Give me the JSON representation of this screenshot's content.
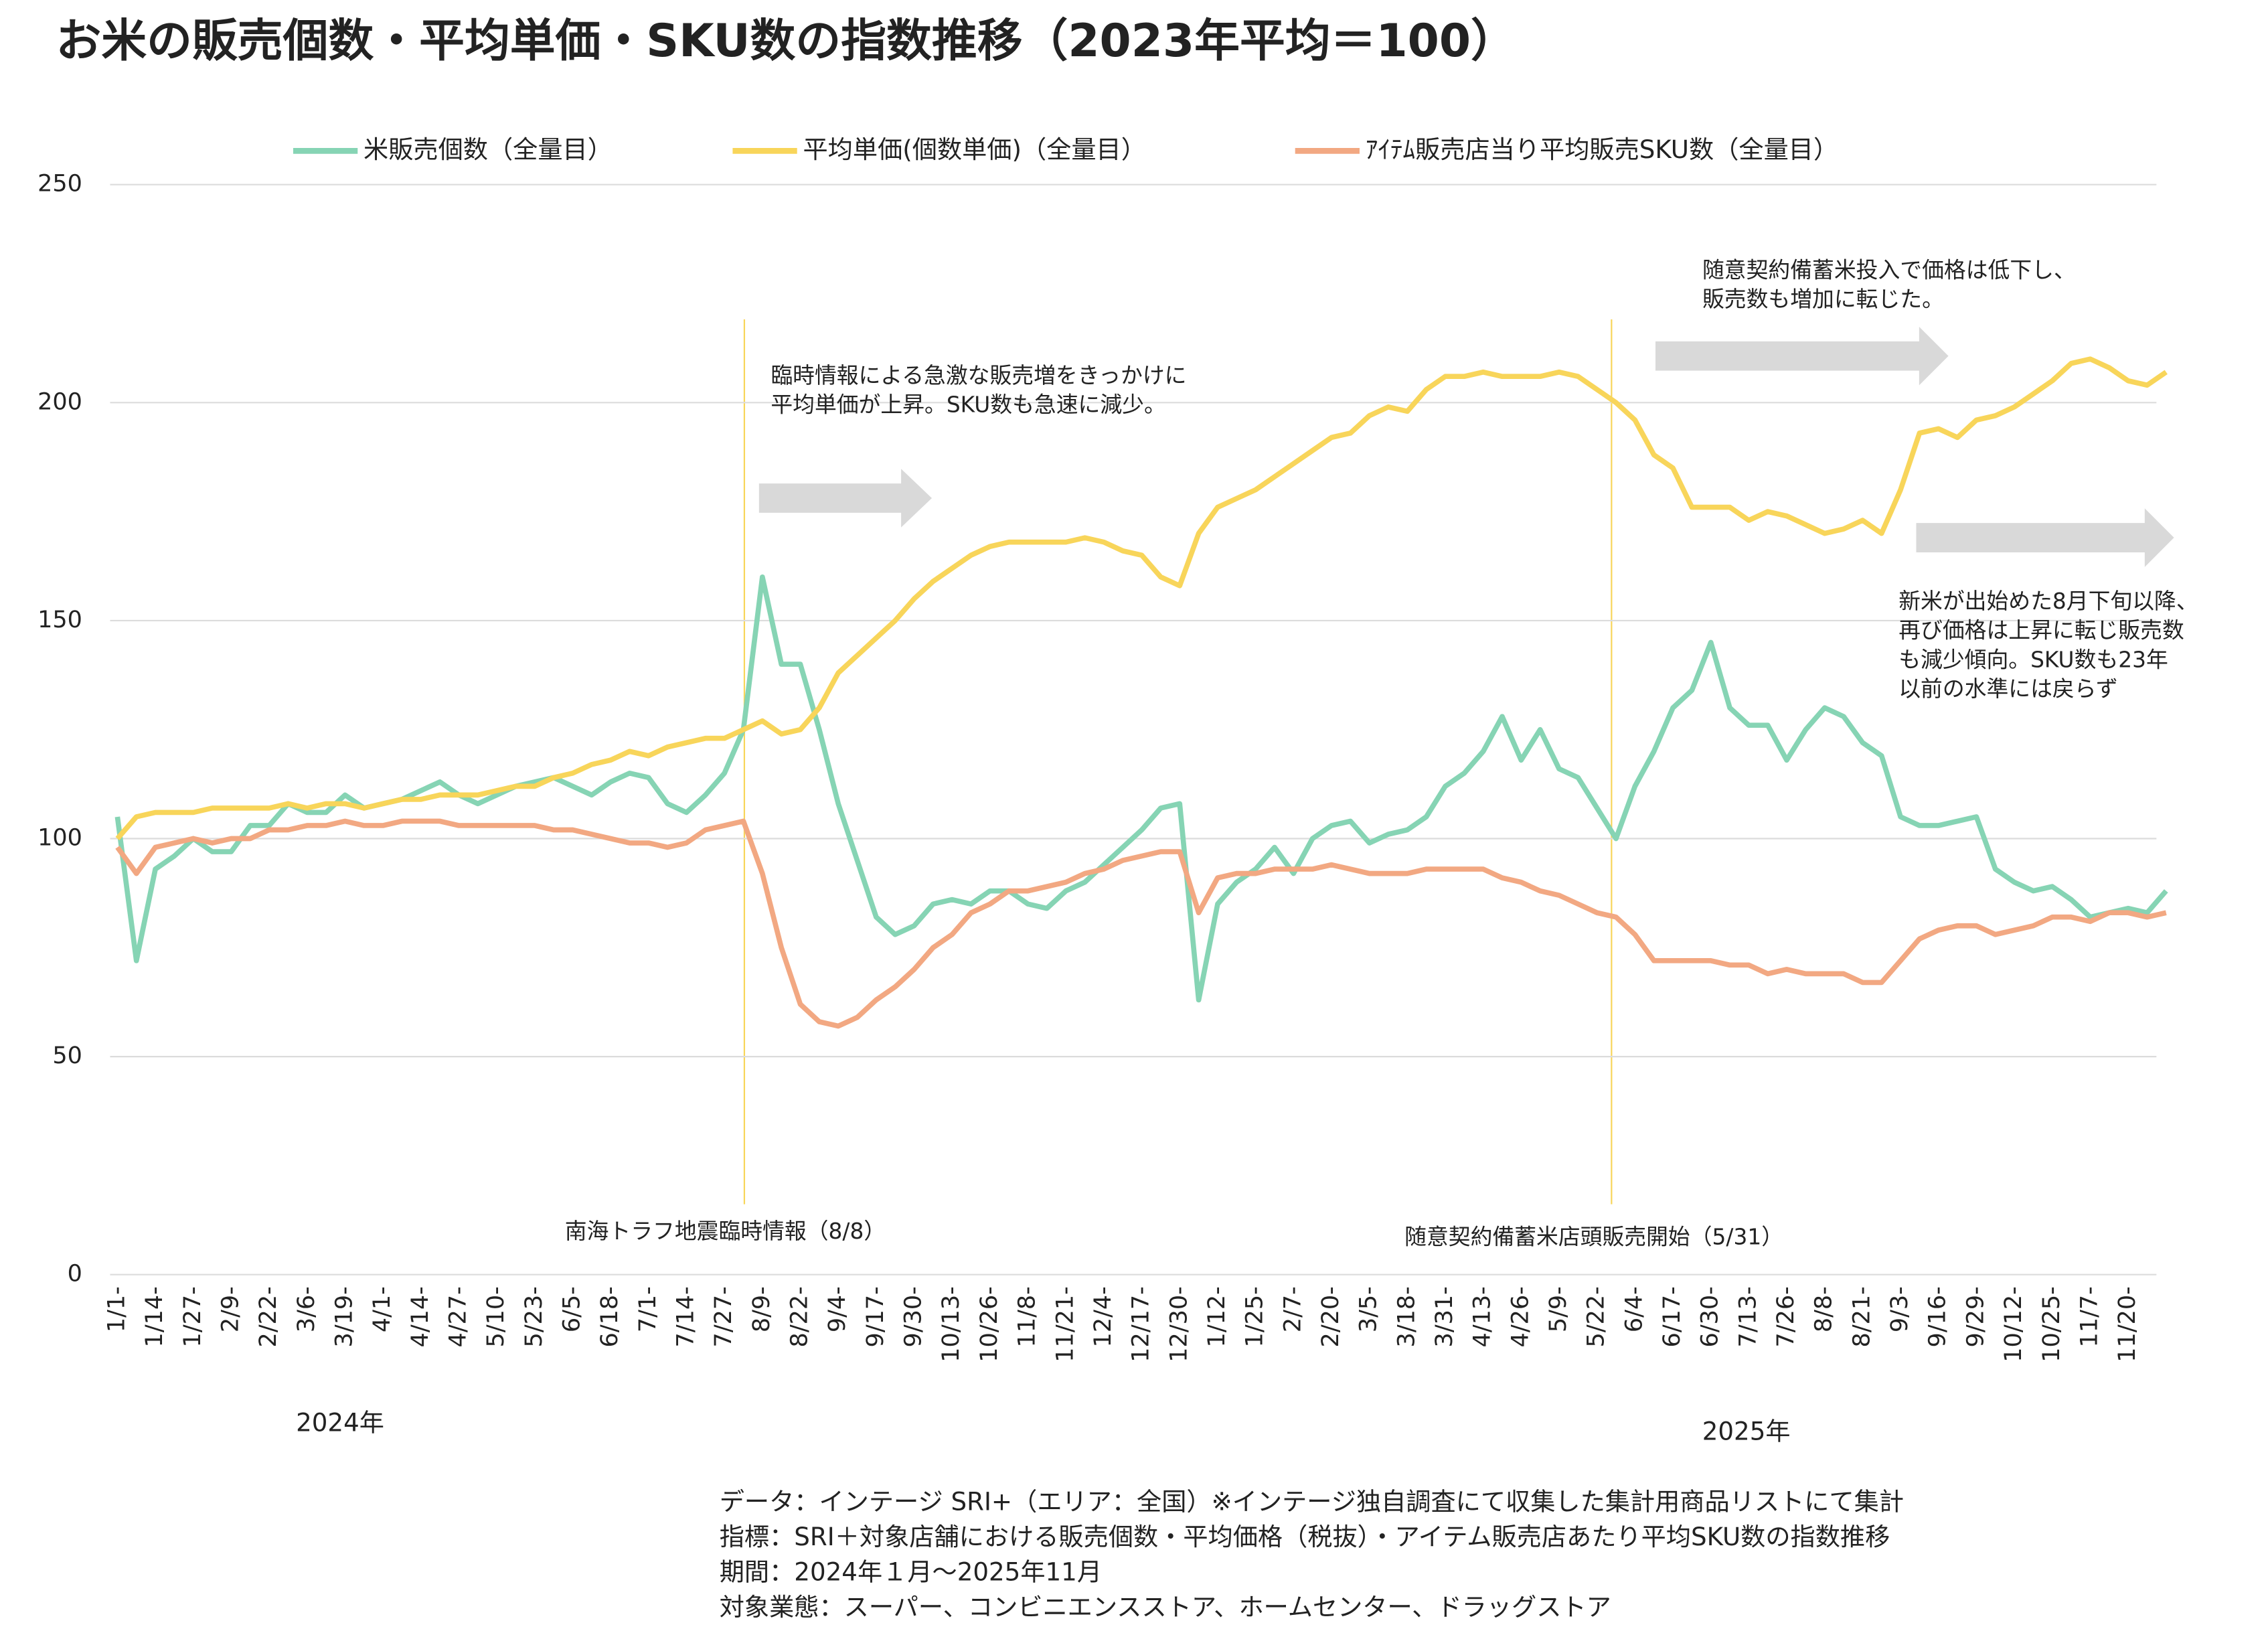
{
  "chart_data": {
    "type": "line",
    "title": "お米の販売個数・平均単価・SKU数の指数推移（2023年平均＝100）",
    "categories": [
      "1/1-",
      null,
      "1/14-",
      null,
      "1/27-",
      null,
      "2/9-",
      null,
      "2/22-",
      null,
      "3/6-",
      null,
      "3/19-",
      null,
      "4/1-",
      null,
      "4/14-",
      null,
      "4/27-",
      null,
      "5/10-",
      null,
      "5/23-",
      null,
      "6/5-",
      null,
      "6/18-",
      null,
      "7/1-",
      null,
      "7/14-",
      null,
      "7/27-",
      null,
      "8/9-",
      null,
      "8/22-",
      null,
      "9/4-",
      null,
      "9/17-",
      null,
      "9/30-",
      null,
      "10/13-",
      null,
      "10/26-",
      null,
      "11/8-",
      null,
      "11/21-",
      null,
      "12/4-",
      null,
      "12/17-",
      null,
      "12/30-",
      null,
      "1/12-",
      null,
      "1/25-",
      null,
      "2/7-",
      null,
      "2/20-",
      null,
      "3/5-",
      null,
      "3/18-",
      null,
      "3/31-",
      null,
      "4/13-",
      null,
      "4/26-",
      null,
      "5/9-",
      null,
      "5/22-",
      null,
      "6/4-",
      null,
      "6/17-",
      null,
      "6/30-",
      null,
      "7/13-",
      null,
      "7/26-",
      null,
      "8/8-",
      null,
      "8/21-",
      null,
      "9/3-",
      null,
      "9/16-",
      null,
      "9/29-",
      null,
      "10/12-",
      null,
      "10/25-",
      null,
      "11/7-",
      null,
      "11/20-",
      null,
      null
    ],
    "x_group_labels": [
      "2024年",
      "2025年"
    ],
    "series": [
      {
        "name": "米販売個数（全量目）",
        "color": "#86d4b4",
        "values": [
          105,
          72,
          93,
          96,
          100,
          97,
          97,
          103,
          103,
          108,
          106,
          106,
          110,
          107,
          108,
          109,
          111,
          113,
          110,
          108,
          110,
          112,
          113,
          114,
          112,
          110,
          113,
          115,
          114,
          108,
          106,
          110,
          115,
          125,
          160,
          140,
          140,
          125,
          108,
          95,
          82,
          78,
          80,
          85,
          86,
          85,
          88,
          88,
          85,
          84,
          88,
          90,
          94,
          98,
          102,
          107,
          108,
          63,
          85,
          90,
          93,
          98,
          92,
          100,
          103,
          104,
          99,
          101,
          102,
          105,
          112,
          115,
          120,
          128,
          118,
          125,
          116,
          114,
          107,
          100,
          112,
          120,
          130,
          134,
          145,
          130,
          126,
          126,
          118,
          125,
          130,
          128,
          122,
          119,
          105,
          103,
          103,
          104,
          105,
          93,
          90,
          88,
          89,
          86,
          82,
          83,
          84,
          83,
          88
        ]
      },
      {
        "name": "平均単価(個数単価)（全量目）",
        "color": "#f8d55a",
        "values": [
          100,
          105,
          106,
          106,
          106,
          107,
          107,
          107,
          107,
          108,
          107,
          108,
          108,
          107,
          108,
          109,
          109,
          110,
          110,
          110,
          111,
          112,
          112,
          114,
          115,
          117,
          118,
          120,
          119,
          121,
          122,
          123,
          123,
          125,
          127,
          124,
          125,
          130,
          138,
          142,
          146,
          150,
          155,
          159,
          162,
          165,
          167,
          168,
          168,
          168,
          168,
          169,
          168,
          166,
          165,
          160,
          158,
          170,
          176,
          178,
          180,
          183,
          186,
          189,
          192,
          193,
          197,
          199,
          198,
          203,
          206,
          206,
          207,
          206,
          206,
          206,
          207,
          206,
          203,
          200,
          196,
          188,
          185,
          176,
          176,
          176,
          173,
          175,
          174,
          172,
          170,
          171,
          173,
          170,
          180,
          193,
          194,
          192,
          196,
          197,
          199,
          202,
          205,
          209,
          210,
          208,
          205,
          204,
          207
        ]
      },
      {
        "name": "ｱｲﾃﾑ販売店当り平均販売SKU数（全量目）",
        "color": "#f2a882",
        "values": [
          98,
          92,
          98,
          99,
          100,
          99,
          100,
          100,
          102,
          102,
          103,
          103,
          104,
          103,
          103,
          104,
          104,
          104,
          103,
          103,
          103,
          103,
          103,
          102,
          102,
          101,
          100,
          99,
          99,
          98,
          99,
          102,
          103,
          104,
          92,
          75,
          62,
          58,
          57,
          59,
          63,
          66,
          70,
          75,
          78,
          83,
          85,
          88,
          88,
          89,
          90,
          92,
          93,
          95,
          96,
          97,
          97,
          83,
          91,
          92,
          92,
          93,
          93,
          93,
          94,
          93,
          92,
          92,
          92,
          93,
          93,
          93,
          93,
          91,
          90,
          88,
          87,
          85,
          83,
          82,
          78,
          72,
          72,
          72,
          72,
          71,
          71,
          69,
          70,
          69,
          69,
          69,
          67,
          67,
          72,
          77,
          79,
          80,
          80,
          78,
          79,
          80,
          82,
          82,
          81,
          83,
          83,
          82,
          83
        ]
      }
    ],
    "ylim": [
      0,
      250
    ],
    "yticks": [
      0,
      50,
      100,
      150,
      200,
      250
    ],
    "grid": true,
    "legend": "top",
    "event_lines": [
      "南海トラフ地震臨時情報（8/8）",
      "随意契約備蓄米店頭販売開始（5/31）"
    ],
    "annotations": [
      [
        "臨時情報による急激な販売増をきっかけに",
        "平均単価が上昇。SKU数も急速に減少。"
      ],
      [
        "随意契約備蓄米投入で価格は低下し、",
        "販売数も増加に転じた。"
      ],
      [
        "新米が出始めた8月下旬以降、",
        "再び価格は上昇に転じ販売数",
        "も減少傾向。SKU数も23年",
        "以前の水準には戻らず"
      ]
    ],
    "notes": [
      "データ：インテージ SRI+（エリア：全国）※インテージ独自調査にて収集した集計用商品リストにて集計",
      "指標：SRI＋対象店舗における販売個数・平均価格（税抜）・アイテム販売店あたり平均SKU数の指数推移",
      "期間：2024年１月～2025年11月",
      "対象業態：スーパー、コンビニエンスストア、ホームセンター、ドラッグストア"
    ]
  }
}
